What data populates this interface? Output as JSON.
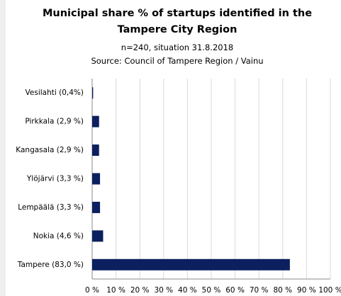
{
  "chart_data": {
    "type": "bar",
    "orientation": "horizontal",
    "title": "Municipal share % of startups identified in the Tampere City Region",
    "subtitle": "n=240, situation 31.8.2018",
    "source": "Source: Council of Tampere Region / Vainu",
    "categories": [
      "Vesilahti (0,4%)",
      "Pirkkala (2,9 %)",
      "Kangasala (2,9 %)",
      "Ylöjärvi (3,3 %)",
      "Lempäälä (3,3 %)",
      "Nokia (4,6 %)",
      "Tampere (83,0 %)"
    ],
    "values": [
      0.4,
      2.9,
      2.9,
      3.3,
      3.3,
      4.6,
      83.0
    ],
    "color": "#0c1f5e",
    "xlim": [
      0,
      100
    ],
    "xticks": [
      {
        "value": 0,
        "label": "0 %"
      },
      {
        "value": 10,
        "label": "10 %"
      },
      {
        "value": 20,
        "label": "20 %"
      },
      {
        "value": 30,
        "label": "30 %"
      },
      {
        "value": 40,
        "label": "40 %"
      },
      {
        "value": 50,
        "label": "50 %"
      },
      {
        "value": 60,
        "label": "60 %"
      },
      {
        "value": 70,
        "label": "70 %"
      },
      {
        "value": 80,
        "label": "80 %"
      },
      {
        "value": 90,
        "label": "90 %"
      },
      {
        "value": 100,
        "label": "100 %"
      }
    ],
    "grid": true
  }
}
